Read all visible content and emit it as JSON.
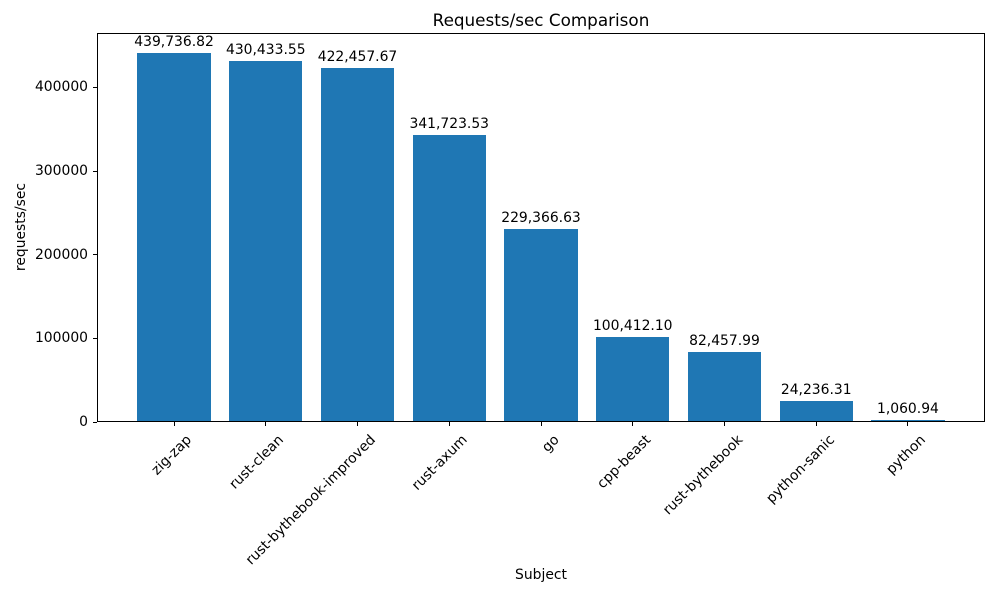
{
  "chart_data": {
    "type": "bar",
    "title": "Requests/sec Comparison",
    "xlabel": "Subject",
    "ylabel": "requests/sec",
    "categories": [
      "zig-zap",
      "rust-clean",
      "rust-bythebook-improved",
      "rust-axum",
      "go",
      "cpp-beast",
      "rust-bythebook",
      "python-sanic",
      "python"
    ],
    "values": [
      439736.82,
      430433.55,
      422457.67,
      341723.53,
      229366.63,
      100412.1,
      82457.99,
      24236.31,
      1060.94
    ],
    "value_labels": [
      "439,736.82",
      "430,433.55",
      "422,457.67",
      "341,723.53",
      "229,366.63",
      "100,412.10",
      "82,457.99",
      "24,236.31",
      "1,060.94"
    ],
    "yticks": [
      0,
      100000,
      200000,
      300000,
      400000
    ],
    "ytick_labels": [
      "0",
      "100000",
      "200000",
      "300000",
      "400000"
    ],
    "ylim": [
      0,
      465000
    ],
    "bar_color": "#1f77b4",
    "grid": false,
    "legend_position": "none",
    "xtick_rotation_deg": 45
  }
}
